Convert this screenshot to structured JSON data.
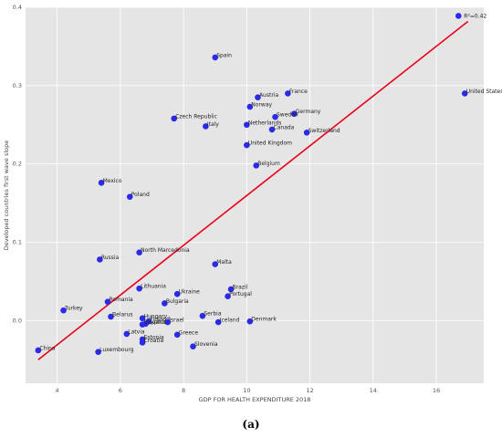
{
  "chart_data": {
    "type": "scatter",
    "xlabel": "GDP FOR HEALTH EXPENDITURE 2018",
    "ylabel": "Developed countries first wave slope",
    "xlim": [
      3.0,
      17.5
    ],
    "ylim": [
      -0.08,
      0.4
    ],
    "xticks": [
      4,
      6,
      8,
      10,
      12,
      14,
      16
    ],
    "yticks": [
      0.0,
      0.1,
      0.2,
      0.3,
      0.4
    ],
    "grid": true,
    "points": [
      {
        "label": "Spain",
        "x": 9.0,
        "y": 0.336
      },
      {
        "label": "Austria",
        "x": 10.35,
        "y": 0.285
      },
      {
        "label": "France",
        "x": 11.3,
        "y": 0.29
      },
      {
        "label": "Norway",
        "x": 10.1,
        "y": 0.273
      },
      {
        "label": "Germany",
        "x": 11.5,
        "y": 0.264
      },
      {
        "label": "Sweden",
        "x": 10.9,
        "y": 0.26
      },
      {
        "label": "Czech Republic",
        "x": 7.7,
        "y": 0.258
      },
      {
        "label": "Italy",
        "x": 8.7,
        "y": 0.248
      },
      {
        "label": "Netherlands",
        "x": 10.0,
        "y": 0.25
      },
      {
        "label": "Canada",
        "x": 10.8,
        "y": 0.244
      },
      {
        "label": "Switzerland",
        "x": 11.9,
        "y": 0.24
      },
      {
        "label": "United Kingdom",
        "x": 10.0,
        "y": 0.224
      },
      {
        "label": "Belgium",
        "x": 10.3,
        "y": 0.198
      },
      {
        "label": "United States",
        "x": 16.9,
        "y": 0.29
      },
      {
        "label": "Mexico",
        "x": 5.4,
        "y": 0.176
      },
      {
        "label": "Poland",
        "x": 6.3,
        "y": 0.158
      },
      {
        "label": "North Marcedonia",
        "x": 6.6,
        "y": 0.087
      },
      {
        "label": "Russia",
        "x": 5.35,
        "y": 0.078
      },
      {
        "label": "Malta",
        "x": 9.0,
        "y": 0.072
      },
      {
        "label": "Lithuania",
        "x": 6.6,
        "y": 0.041
      },
      {
        "label": "Brazil",
        "x": 9.5,
        "y": 0.04
      },
      {
        "label": "Ukraine",
        "x": 7.8,
        "y": 0.034
      },
      {
        "label": "Portugal",
        "x": 9.4,
        "y": 0.031
      },
      {
        "label": "Romania",
        "x": 5.6,
        "y": 0.024
      },
      {
        "label": "Bulgaria",
        "x": 7.4,
        "y": 0.022
      },
      {
        "label": "Turkey",
        "x": 4.2,
        "y": 0.013
      },
      {
        "label": "Belarus",
        "x": 5.7,
        "y": 0.005
      },
      {
        "label": "Hungary",
        "x": 6.7,
        "y": 0.003
      },
      {
        "label": "Serbia",
        "x": 8.6,
        "y": 0.006
      },
      {
        "label": "Cyprus",
        "x": 6.8,
        "y": -0.004
      },
      {
        "label": "Finland",
        "x": 6.9,
        "y": -0.001
      },
      {
        "label": "Israel",
        "x": 7.5,
        "y": -0.002
      },
      {
        "label": "Slovakia",
        "x": 6.7,
        "y": -0.005
      },
      {
        "label": "Iceland",
        "x": 9.1,
        "y": -0.002
      },
      {
        "label": "Denmark",
        "x": 10.1,
        "y": -0.001
      },
      {
        "label": "Latvia",
        "x": 6.2,
        "y": -0.017
      },
      {
        "label": "Greece",
        "x": 7.8,
        "y": -0.018
      },
      {
        "label": "Estonia",
        "x": 6.7,
        "y": -0.024
      },
      {
        "label": "Croatia",
        "x": 6.7,
        "y": -0.028
      },
      {
        "label": "Slovenia",
        "x": 8.3,
        "y": -0.033
      },
      {
        "label": "China",
        "x": 3.4,
        "y": -0.038
      },
      {
        "label": "Luxembourg",
        "x": 5.3,
        "y": -0.04
      }
    ],
    "trendline": {
      "x1": 3.4,
      "y1": -0.05,
      "x2": 17.0,
      "y2": 0.382,
      "color": "#e8001a"
    },
    "r2_label": "R²=0.42",
    "r2_x": 16.7,
    "r2_y": 0.389,
    "colors": {
      "background": "#e5e5e5",
      "point": "#2a2ae8",
      "grid": "#ffffff"
    }
  },
  "caption": {
    "text": "(a)"
  }
}
